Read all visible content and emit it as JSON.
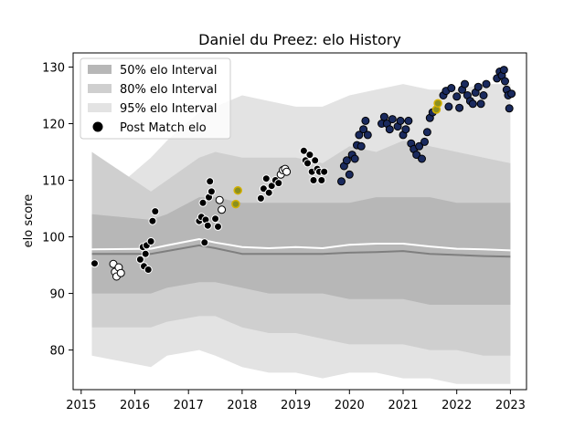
{
  "chart_data": {
    "type": "scatter",
    "title": "Daniel du Preez: elo History",
    "xlabel": "",
    "ylabel": "elo score",
    "xlim": [
      2014.85,
      2023.3
    ],
    "ylim": [
      73,
      132.5
    ],
    "x_ticks": [
      2015,
      2016,
      2017,
      2018,
      2019,
      2020,
      2021,
      2022,
      2023
    ],
    "y_ticks": [
      80,
      90,
      100,
      110,
      120,
      130
    ],
    "grid": false,
    "legend_placement": "top-left",
    "legend": [
      "50% elo Interval",
      "80% elo Interval",
      "95% elo Interval",
      "Post Match elo"
    ],
    "colors": {
      "band95": "#e3e3e3",
      "band80": "#cfcfcf",
      "band50": "#b7b7b7",
      "median_line": "#7f7f7f",
      "mean_line": "#ffffff",
      "early_points": "#000000",
      "late_points": "#1a2a5e",
      "highlight_points": "#8b8f1f",
      "highlight_edge": "#d4b000"
    },
    "bands": {
      "x": [
        2015.2,
        2016.3,
        2016.6,
        2017.2,
        2017.5,
        2018.0,
        2018.5,
        2019.0,
        2019.5,
        2020.0,
        2020.5,
        2021.0,
        2021.5,
        2022.0,
        2022.5,
        2023.0
      ],
      "p95_upper": [
        105,
        114,
        117,
        122,
        123,
        125,
        124,
        123,
        123,
        125,
        126,
        127,
        126,
        126,
        127,
        127
      ],
      "p80_upper": [
        115,
        108,
        110,
        114,
        115,
        114,
        114,
        114,
        113,
        116,
        115,
        117,
        116,
        115,
        114,
        113
      ],
      "p50_upper": [
        104,
        103,
        104,
        107,
        107,
        106,
        106,
        106,
        106,
        106,
        107,
        107,
        107,
        106,
        106,
        106
      ],
      "p50_lower": [
        90,
        90,
        91,
        92,
        92,
        91,
        90,
        90,
        90,
        89,
        89,
        89,
        88,
        88,
        88,
        88
      ],
      "p80_lower": [
        84,
        84,
        85,
        86,
        86,
        84,
        83,
        83,
        82,
        81,
        81,
        81,
        80,
        80,
        79,
        79
      ],
      "p95_lower": [
        79,
        77,
        79,
        80,
        79,
        77,
        76,
        76,
        75,
        76,
        76,
        75,
        75,
        74,
        74,
        74
      ]
    },
    "median_line": {
      "x": [
        2015.2,
        2016.3,
        2016.6,
        2017.2,
        2017.5,
        2018.0,
        2018.5,
        2019.0,
        2019.5,
        2020.0,
        2020.5,
        2021.0,
        2021.5,
        2022.0,
        2022.5,
        2023.0
      ],
      "y": [
        97.0,
        97.0,
        97.5,
        98.5,
        98.0,
        97.0,
        97.0,
        97.0,
        97.0,
        97.2,
        97.3,
        97.5,
        97.0,
        96.8,
        96.6,
        96.5
      ]
    },
    "mean_line": {
      "x": [
        2015.2,
        2016.3,
        2016.6,
        2017.2,
        2017.5,
        2018.0,
        2018.5,
        2019.0,
        2019.5,
        2020.0,
        2020.5,
        2021.0,
        2021.5,
        2022.0,
        2022.5,
        2023.0
      ],
      "y": [
        97.8,
        97.9,
        98.5,
        99.6,
        99.0,
        98.2,
        98.0,
        98.2,
        98.0,
        98.6,
        98.8,
        98.8,
        98.3,
        97.9,
        97.8,
        97.6
      ]
    },
    "points": [
      {
        "x": 2015.25,
        "y": 95.3,
        "group": "early"
      },
      {
        "x": 2015.6,
        "y": 95.2,
        "group": "early"
      },
      {
        "x": 2015.63,
        "y": 93.8,
        "group": "early"
      },
      {
        "x": 2015.66,
        "y": 93.0,
        "group": "early"
      },
      {
        "x": 2015.7,
        "y": 94.6,
        "group": "early"
      },
      {
        "x": 2015.74,
        "y": 93.6,
        "group": "early"
      },
      {
        "x": 2016.1,
        "y": 96.0,
        "group": "early"
      },
      {
        "x": 2016.15,
        "y": 98.2,
        "group": "early"
      },
      {
        "x": 2016.17,
        "y": 94.8,
        "group": "early"
      },
      {
        "x": 2016.2,
        "y": 97.0,
        "group": "early"
      },
      {
        "x": 2016.22,
        "y": 98.5,
        "group": "early"
      },
      {
        "x": 2016.25,
        "y": 94.2,
        "group": "early"
      },
      {
        "x": 2016.3,
        "y": 99.2,
        "group": "early"
      },
      {
        "x": 2016.33,
        "y": 102.8,
        "group": "early"
      },
      {
        "x": 2016.38,
        "y": 104.5,
        "group": "early"
      },
      {
        "x": 2017.2,
        "y": 102.8,
        "group": "early"
      },
      {
        "x": 2017.24,
        "y": 103.5,
        "group": "early"
      },
      {
        "x": 2017.27,
        "y": 106.0,
        "group": "early"
      },
      {
        "x": 2017.3,
        "y": 99.0,
        "group": "early"
      },
      {
        "x": 2017.32,
        "y": 103.0,
        "group": "early"
      },
      {
        "x": 2017.36,
        "y": 102.0,
        "group": "early"
      },
      {
        "x": 2017.38,
        "y": 107.0,
        "group": "early"
      },
      {
        "x": 2017.4,
        "y": 109.8,
        "group": "early"
      },
      {
        "x": 2017.43,
        "y": 108.0,
        "group": "early"
      },
      {
        "x": 2017.5,
        "y": 103.2,
        "group": "early"
      },
      {
        "x": 2017.55,
        "y": 101.8,
        "group": "early"
      },
      {
        "x": 2017.58,
        "y": 106.5,
        "group": "early"
      },
      {
        "x": 2017.62,
        "y": 104.8,
        "group": "early"
      },
      {
        "x": 2017.88,
        "y": 105.8,
        "group": "highlight"
      },
      {
        "x": 2017.92,
        "y": 108.2,
        "group": "highlight"
      },
      {
        "x": 2018.35,
        "y": 106.8,
        "group": "early"
      },
      {
        "x": 2018.4,
        "y": 108.5,
        "group": "early"
      },
      {
        "x": 2018.45,
        "y": 110.3,
        "group": "early"
      },
      {
        "x": 2018.5,
        "y": 107.8,
        "group": "early"
      },
      {
        "x": 2018.55,
        "y": 109.0,
        "group": "early"
      },
      {
        "x": 2018.62,
        "y": 110.0,
        "group": "early"
      },
      {
        "x": 2018.68,
        "y": 109.5,
        "group": "early"
      },
      {
        "x": 2018.72,
        "y": 111.0,
        "group": "early"
      },
      {
        "x": 2018.76,
        "y": 111.8,
        "group": "early"
      },
      {
        "x": 2018.8,
        "y": 112.0,
        "group": "early"
      },
      {
        "x": 2018.83,
        "y": 111.5,
        "group": "early"
      },
      {
        "x": 2019.15,
        "y": 115.2,
        "group": "early"
      },
      {
        "x": 2019.18,
        "y": 113.5,
        "group": "early"
      },
      {
        "x": 2019.22,
        "y": 113.0,
        "group": "early"
      },
      {
        "x": 2019.26,
        "y": 114.5,
        "group": "early"
      },
      {
        "x": 2019.3,
        "y": 111.5,
        "group": "early"
      },
      {
        "x": 2019.33,
        "y": 110.0,
        "group": "early"
      },
      {
        "x": 2019.36,
        "y": 113.5,
        "group": "early"
      },
      {
        "x": 2019.4,
        "y": 112.0,
        "group": "early"
      },
      {
        "x": 2019.44,
        "y": 111.5,
        "group": "early"
      },
      {
        "x": 2019.48,
        "y": 110.0,
        "group": "early"
      },
      {
        "x": 2019.53,
        "y": 111.5,
        "group": "early"
      },
      {
        "x": 2019.85,
        "y": 109.8,
        "group": "late"
      },
      {
        "x": 2019.9,
        "y": 112.5,
        "group": "late"
      },
      {
        "x": 2019.95,
        "y": 113.5,
        "group": "late"
      },
      {
        "x": 2020.0,
        "y": 111.0,
        "group": "late"
      },
      {
        "x": 2020.05,
        "y": 114.5,
        "group": "late"
      },
      {
        "x": 2020.1,
        "y": 113.8,
        "group": "late"
      },
      {
        "x": 2020.14,
        "y": 116.2,
        "group": "late"
      },
      {
        "x": 2020.18,
        "y": 118.0,
        "group": "late"
      },
      {
        "x": 2020.22,
        "y": 116.0,
        "group": "late"
      },
      {
        "x": 2020.26,
        "y": 119.0,
        "group": "late"
      },
      {
        "x": 2020.3,
        "y": 120.5,
        "group": "late"
      },
      {
        "x": 2020.34,
        "y": 118.0,
        "group": "late"
      },
      {
        "x": 2020.6,
        "y": 120.0,
        "group": "late"
      },
      {
        "x": 2020.65,
        "y": 121.2,
        "group": "late"
      },
      {
        "x": 2020.7,
        "y": 120.0,
        "group": "late"
      },
      {
        "x": 2020.75,
        "y": 119.0,
        "group": "late"
      },
      {
        "x": 2020.8,
        "y": 120.8,
        "group": "late"
      },
      {
        "x": 2020.9,
        "y": 119.5,
        "group": "late"
      },
      {
        "x": 2020.95,
        "y": 120.5,
        "group": "late"
      },
      {
        "x": 2021.0,
        "y": 118.0,
        "group": "late"
      },
      {
        "x": 2021.05,
        "y": 119.0,
        "group": "late"
      },
      {
        "x": 2021.1,
        "y": 120.5,
        "group": "late"
      },
      {
        "x": 2021.15,
        "y": 116.5,
        "group": "late"
      },
      {
        "x": 2021.2,
        "y": 115.5,
        "group": "late"
      },
      {
        "x": 2021.25,
        "y": 114.5,
        "group": "late"
      },
      {
        "x": 2021.3,
        "y": 116.0,
        "group": "late"
      },
      {
        "x": 2021.35,
        "y": 113.8,
        "group": "late"
      },
      {
        "x": 2021.4,
        "y": 116.8,
        "group": "late"
      },
      {
        "x": 2021.45,
        "y": 118.5,
        "group": "late"
      },
      {
        "x": 2021.5,
        "y": 121.0,
        "group": "late"
      },
      {
        "x": 2021.55,
        "y": 122.0,
        "group": "late"
      },
      {
        "x": 2021.62,
        "y": 122.5,
        "group": "highlight"
      },
      {
        "x": 2021.65,
        "y": 123.6,
        "group": "highlight"
      },
      {
        "x": 2021.75,
        "y": 125.0,
        "group": "late"
      },
      {
        "x": 2021.8,
        "y": 125.8,
        "group": "late"
      },
      {
        "x": 2021.85,
        "y": 123.0,
        "group": "late"
      },
      {
        "x": 2021.9,
        "y": 126.3,
        "group": "late"
      },
      {
        "x": 2022.0,
        "y": 124.8,
        "group": "late"
      },
      {
        "x": 2022.05,
        "y": 122.8,
        "group": "late"
      },
      {
        "x": 2022.1,
        "y": 126.0,
        "group": "late"
      },
      {
        "x": 2022.15,
        "y": 127.0,
        "group": "late"
      },
      {
        "x": 2022.2,
        "y": 125.0,
        "group": "late"
      },
      {
        "x": 2022.25,
        "y": 124.0,
        "group": "late"
      },
      {
        "x": 2022.3,
        "y": 123.5,
        "group": "late"
      },
      {
        "x": 2022.35,
        "y": 125.5,
        "group": "late"
      },
      {
        "x": 2022.4,
        "y": 126.5,
        "group": "late"
      },
      {
        "x": 2022.45,
        "y": 123.5,
        "group": "late"
      },
      {
        "x": 2022.5,
        "y": 125.0,
        "group": "late"
      },
      {
        "x": 2022.55,
        "y": 127.0,
        "group": "late"
      },
      {
        "x": 2022.75,
        "y": 128.0,
        "group": "late"
      },
      {
        "x": 2022.8,
        "y": 129.2,
        "group": "late"
      },
      {
        "x": 2022.84,
        "y": 128.5,
        "group": "late"
      },
      {
        "x": 2022.88,
        "y": 129.5,
        "group": "late"
      },
      {
        "x": 2022.9,
        "y": 127.5,
        "group": "late"
      },
      {
        "x": 2022.93,
        "y": 126.0,
        "group": "late"
      },
      {
        "x": 2022.96,
        "y": 125.0,
        "group": "late"
      },
      {
        "x": 2022.98,
        "y": 122.7,
        "group": "late"
      },
      {
        "x": 2023.02,
        "y": 125.3,
        "group": "late"
      }
    ]
  }
}
